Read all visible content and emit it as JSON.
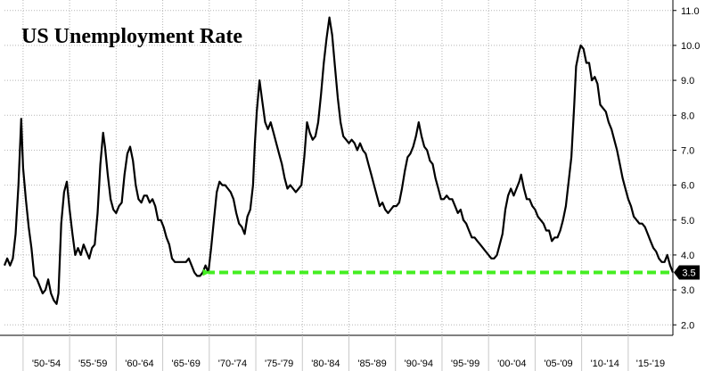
{
  "chart_data": {
    "type": "line",
    "title": "US Unemployment Rate",
    "xlabel": "",
    "ylabel": "",
    "x_tick_labels": [
      "'50-'54",
      "'55-'59",
      "'60-'64",
      "'65-'69",
      "'70-'74",
      "'75-'79",
      "'80-'84",
      "'85-'89",
      "'90-'94",
      "'95-'99",
      "'00-'04",
      "'05-'09",
      "'10-'14",
      "'15-'19"
    ],
    "xlim": [
      1948,
      2019.8
    ],
    "ylim": [
      1.7,
      11.3
    ],
    "y_ticks": [
      2.0,
      3.0,
      4.0,
      5.0,
      6.0,
      7.0,
      8.0,
      9.0,
      10.0,
      11.0
    ],
    "y_axis_position": "right",
    "grid": "dotted",
    "series": [
      {
        "color": "#000000",
        "points": [
          [
            1948.0,
            3.7
          ],
          [
            1948.3,
            3.9
          ],
          [
            1948.6,
            3.7
          ],
          [
            1948.9,
            3.9
          ],
          [
            1949.2,
            4.6
          ],
          [
            1949.5,
            6.0
          ],
          [
            1949.8,
            7.9
          ],
          [
            1950.0,
            6.5
          ],
          [
            1950.3,
            5.6
          ],
          [
            1950.6,
            4.8
          ],
          [
            1950.9,
            4.2
          ],
          [
            1951.2,
            3.4
          ],
          [
            1951.5,
            3.3
          ],
          [
            1951.8,
            3.1
          ],
          [
            1952.1,
            2.9
          ],
          [
            1952.4,
            3.0
          ],
          [
            1952.7,
            3.3
          ],
          [
            1953.0,
            2.9
          ],
          [
            1953.3,
            2.7
          ],
          [
            1953.6,
            2.6
          ],
          [
            1953.8,
            2.9
          ],
          [
            1954.1,
            4.9
          ],
          [
            1954.4,
            5.8
          ],
          [
            1954.7,
            6.1
          ],
          [
            1955.0,
            5.3
          ],
          [
            1955.3,
            4.6
          ],
          [
            1955.6,
            4.0
          ],
          [
            1955.9,
            4.2
          ],
          [
            1956.2,
            4.0
          ],
          [
            1956.5,
            4.3
          ],
          [
            1956.8,
            4.1
          ],
          [
            1957.1,
            3.9
          ],
          [
            1957.4,
            4.2
          ],
          [
            1957.7,
            4.3
          ],
          [
            1958.0,
            5.2
          ],
          [
            1958.3,
            6.6
          ],
          [
            1958.6,
            7.5
          ],
          [
            1958.8,
            7.1
          ],
          [
            1959.1,
            6.3
          ],
          [
            1959.4,
            5.6
          ],
          [
            1959.7,
            5.3
          ],
          [
            1960.0,
            5.2
          ],
          [
            1960.3,
            5.4
          ],
          [
            1960.6,
            5.5
          ],
          [
            1960.9,
            6.3
          ],
          [
            1961.2,
            6.9
          ],
          [
            1961.5,
            7.1
          ],
          [
            1961.8,
            6.7
          ],
          [
            1962.1,
            6.0
          ],
          [
            1962.4,
            5.6
          ],
          [
            1962.7,
            5.5
          ],
          [
            1963.0,
            5.7
          ],
          [
            1963.3,
            5.7
          ],
          [
            1963.6,
            5.5
          ],
          [
            1963.9,
            5.6
          ],
          [
            1964.2,
            5.4
          ],
          [
            1964.5,
            5.0
          ],
          [
            1964.8,
            5.0
          ],
          [
            1965.1,
            4.8
          ],
          [
            1965.4,
            4.5
          ],
          [
            1965.7,
            4.3
          ],
          [
            1966.0,
            3.9
          ],
          [
            1966.3,
            3.8
          ],
          [
            1966.6,
            3.8
          ],
          [
            1966.9,
            3.8
          ],
          [
            1967.2,
            3.8
          ],
          [
            1967.5,
            3.8
          ],
          [
            1967.8,
            3.9
          ],
          [
            1968.1,
            3.7
          ],
          [
            1968.4,
            3.5
          ],
          [
            1968.7,
            3.4
          ],
          [
            1969.0,
            3.4
          ],
          [
            1969.3,
            3.5
          ],
          [
            1969.6,
            3.7
          ],
          [
            1969.9,
            3.5
          ],
          [
            1970.2,
            4.2
          ],
          [
            1970.5,
            5.0
          ],
          [
            1970.8,
            5.8
          ],
          [
            1971.1,
            6.1
          ],
          [
            1971.4,
            6.0
          ],
          [
            1971.7,
            6.0
          ],
          [
            1972.0,
            5.9
          ],
          [
            1972.3,
            5.8
          ],
          [
            1972.6,
            5.6
          ],
          [
            1972.9,
            5.2
          ],
          [
            1973.2,
            4.9
          ],
          [
            1973.5,
            4.8
          ],
          [
            1973.8,
            4.6
          ],
          [
            1974.1,
            5.1
          ],
          [
            1974.4,
            5.3
          ],
          [
            1974.7,
            6.0
          ],
          [
            1974.9,
            7.2
          ],
          [
            1975.1,
            8.1
          ],
          [
            1975.4,
            9.0
          ],
          [
            1975.7,
            8.4
          ],
          [
            1976.0,
            7.8
          ],
          [
            1976.3,
            7.6
          ],
          [
            1976.6,
            7.8
          ],
          [
            1976.9,
            7.5
          ],
          [
            1977.2,
            7.2
          ],
          [
            1977.5,
            6.9
          ],
          [
            1977.8,
            6.6
          ],
          [
            1978.1,
            6.2
          ],
          [
            1978.4,
            5.9
          ],
          [
            1978.7,
            6.0
          ],
          [
            1979.0,
            5.9
          ],
          [
            1979.3,
            5.8
          ],
          [
            1979.6,
            5.9
          ],
          [
            1979.9,
            6.0
          ],
          [
            1980.2,
            6.8
          ],
          [
            1980.5,
            7.8
          ],
          [
            1980.8,
            7.5
          ],
          [
            1981.1,
            7.3
          ],
          [
            1981.4,
            7.4
          ],
          [
            1981.7,
            7.8
          ],
          [
            1982.0,
            8.6
          ],
          [
            1982.3,
            9.5
          ],
          [
            1982.6,
            10.2
          ],
          [
            1982.9,
            10.8
          ],
          [
            1983.2,
            10.3
          ],
          [
            1983.5,
            9.4
          ],
          [
            1983.8,
            8.5
          ],
          [
            1984.1,
            7.8
          ],
          [
            1984.4,
            7.4
          ],
          [
            1984.7,
            7.3
          ],
          [
            1985.0,
            7.2
          ],
          [
            1985.3,
            7.3
          ],
          [
            1985.6,
            7.2
          ],
          [
            1985.9,
            7.0
          ],
          [
            1986.2,
            7.2
          ],
          [
            1986.5,
            7.0
          ],
          [
            1986.8,
            6.9
          ],
          [
            1987.1,
            6.6
          ],
          [
            1987.4,
            6.3
          ],
          [
            1987.7,
            6.0
          ],
          [
            1988.0,
            5.7
          ],
          [
            1988.3,
            5.4
          ],
          [
            1988.6,
            5.5
          ],
          [
            1988.9,
            5.3
          ],
          [
            1989.2,
            5.2
          ],
          [
            1989.5,
            5.3
          ],
          [
            1989.8,
            5.4
          ],
          [
            1990.1,
            5.4
          ],
          [
            1990.4,
            5.5
          ],
          [
            1990.7,
            5.9
          ],
          [
            1991.0,
            6.4
          ],
          [
            1991.3,
            6.8
          ],
          [
            1991.6,
            6.9
          ],
          [
            1991.9,
            7.1
          ],
          [
            1992.2,
            7.4
          ],
          [
            1992.5,
            7.8
          ],
          [
            1992.8,
            7.4
          ],
          [
            1993.1,
            7.1
          ],
          [
            1993.4,
            7.0
          ],
          [
            1993.7,
            6.7
          ],
          [
            1994.0,
            6.6
          ],
          [
            1994.3,
            6.2
          ],
          [
            1994.6,
            5.9
          ],
          [
            1994.9,
            5.6
          ],
          [
            1995.2,
            5.6
          ],
          [
            1995.5,
            5.7
          ],
          [
            1995.8,
            5.6
          ],
          [
            1996.1,
            5.6
          ],
          [
            1996.4,
            5.4
          ],
          [
            1996.7,
            5.2
          ],
          [
            1997.0,
            5.3
          ],
          [
            1997.3,
            5.0
          ],
          [
            1997.6,
            4.9
          ],
          [
            1997.9,
            4.7
          ],
          [
            1998.2,
            4.5
          ],
          [
            1998.5,
            4.5
          ],
          [
            1998.8,
            4.4
          ],
          [
            1999.1,
            4.3
          ],
          [
            1999.4,
            4.2
          ],
          [
            1999.7,
            4.1
          ],
          [
            2000.0,
            4.0
          ],
          [
            2000.3,
            3.9
          ],
          [
            2000.6,
            3.9
          ],
          [
            2000.9,
            4.0
          ],
          [
            2001.2,
            4.3
          ],
          [
            2001.5,
            4.6
          ],
          [
            2001.8,
            5.3
          ],
          [
            2002.1,
            5.7
          ],
          [
            2002.4,
            5.9
          ],
          [
            2002.7,
            5.7
          ],
          [
            2003.0,
            5.9
          ],
          [
            2003.3,
            6.1
          ],
          [
            2003.5,
            6.3
          ],
          [
            2003.8,
            5.9
          ],
          [
            2004.1,
            5.6
          ],
          [
            2004.4,
            5.6
          ],
          [
            2004.7,
            5.4
          ],
          [
            2005.0,
            5.3
          ],
          [
            2005.3,
            5.1
          ],
          [
            2005.6,
            5.0
          ],
          [
            2005.9,
            4.9
          ],
          [
            2006.2,
            4.7
          ],
          [
            2006.5,
            4.7
          ],
          [
            2006.8,
            4.4
          ],
          [
            2007.1,
            4.5
          ],
          [
            2007.4,
            4.5
          ],
          [
            2007.7,
            4.7
          ],
          [
            2008.0,
            5.0
          ],
          [
            2008.3,
            5.4
          ],
          [
            2008.6,
            6.1
          ],
          [
            2008.9,
            6.8
          ],
          [
            2009.2,
            8.3
          ],
          [
            2009.4,
            9.4
          ],
          [
            2009.7,
            9.8
          ],
          [
            2009.9,
            10.0
          ],
          [
            2010.2,
            9.9
          ],
          [
            2010.5,
            9.5
          ],
          [
            2010.8,
            9.5
          ],
          [
            2011.1,
            9.0
          ],
          [
            2011.4,
            9.1
          ],
          [
            2011.7,
            8.9
          ],
          [
            2012.0,
            8.3
          ],
          [
            2012.3,
            8.2
          ],
          [
            2012.6,
            8.1
          ],
          [
            2012.9,
            7.8
          ],
          [
            2013.2,
            7.6
          ],
          [
            2013.5,
            7.3
          ],
          [
            2013.8,
            7.0
          ],
          [
            2014.1,
            6.6
          ],
          [
            2014.4,
            6.2
          ],
          [
            2014.7,
            5.9
          ],
          [
            2015.0,
            5.6
          ],
          [
            2015.3,
            5.4
          ],
          [
            2015.6,
            5.1
          ],
          [
            2015.9,
            5.0
          ],
          [
            2016.2,
            4.9
          ],
          [
            2016.5,
            4.9
          ],
          [
            2016.8,
            4.8
          ],
          [
            2017.1,
            4.6
          ],
          [
            2017.4,
            4.4
          ],
          [
            2017.7,
            4.2
          ],
          [
            2018.0,
            4.1
          ],
          [
            2018.3,
            3.9
          ],
          [
            2018.6,
            3.8
          ],
          [
            2018.9,
            3.8
          ],
          [
            2019.2,
            4.0
          ],
          [
            2019.5,
            3.7
          ],
          [
            2019.8,
            3.5
          ]
        ]
      }
    ],
    "annotation": {
      "type": "dashed-arrow",
      "color": "#44ee22",
      "y": 3.5,
      "x_from": 2019.8,
      "x_to": 1969.3
    },
    "last_value": {
      "label": "3.5",
      "value": 3.5,
      "badge_color": "#000000"
    }
  }
}
